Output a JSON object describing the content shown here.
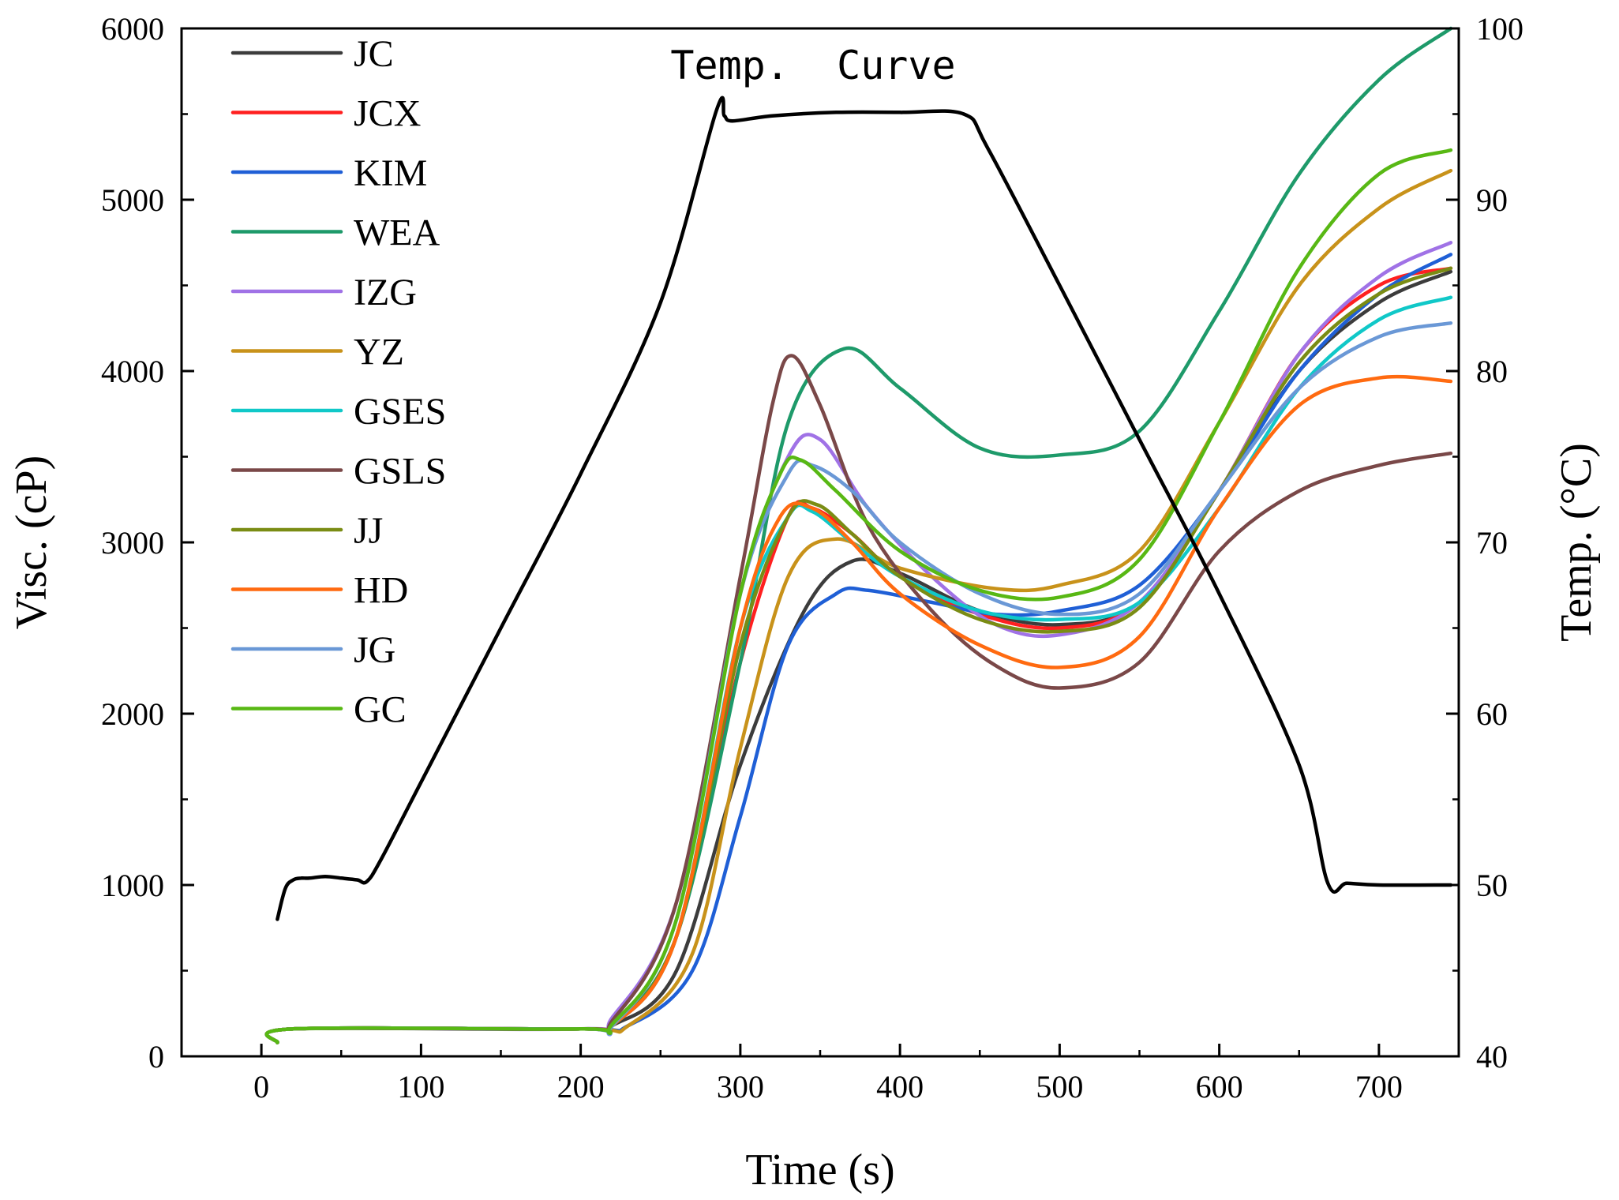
{
  "chart_data": {
    "type": "line",
    "title": "",
    "annotation": "Temp.  Curve",
    "xlabel": "Time (s)",
    "ylabel": "Visc. (cP)",
    "y2label": "Temp. (°C)",
    "xlim": [
      -50,
      750
    ],
    "ylim": [
      0,
      6000
    ],
    "y2lim": [
      40,
      100
    ],
    "x_ticks": [
      "0",
      "100",
      "200",
      "300",
      "400",
      "500",
      "600",
      "700"
    ],
    "y_ticks": [
      "0",
      "1000",
      "2000",
      "3000",
      "4000",
      "5000",
      "6000"
    ],
    "y2_ticks": [
      "40",
      "50",
      "60",
      "70",
      "80",
      "90",
      "100"
    ],
    "legend_position": "top-left",
    "series": [
      {
        "name": "JC",
        "color": "#3c3c3c",
        "x": [
          10,
          20,
          200,
          220,
          260,
          300,
          340,
          370,
          400,
          450,
          500,
          550,
          600,
          650,
          700,
          745
        ],
        "y": [
          80,
          160,
          160,
          180,
          500,
          1700,
          2600,
          2890,
          2820,
          2600,
          2520,
          2650,
          3300,
          4000,
          4400,
          4580
        ]
      },
      {
        "name": "JCX",
        "color": "#ff2020",
        "x": [
          10,
          20,
          200,
          220,
          260,
          300,
          330,
          345,
          370,
          400,
          450,
          500,
          550,
          600,
          650,
          700,
          745
        ],
        "y": [
          80,
          160,
          160,
          180,
          700,
          2300,
          3150,
          3200,
          3050,
          2800,
          2580,
          2500,
          2650,
          3300,
          4100,
          4500,
          4600
        ]
      },
      {
        "name": "KIM",
        "color": "#1f5fd6",
        "x": [
          10,
          20,
          200,
          230,
          270,
          300,
          330,
          360,
          380,
          420,
          460,
          500,
          550,
          600,
          650,
          700,
          745
        ],
        "y": [
          80,
          160,
          160,
          180,
          500,
          1400,
          2400,
          2700,
          2720,
          2650,
          2580,
          2600,
          2750,
          3300,
          4000,
          4450,
          4680
        ]
      },
      {
        "name": "WEA",
        "color": "#1e9a6a",
        "x": [
          10,
          20,
          200,
          220,
          260,
          300,
          330,
          365,
          400,
          450,
          500,
          550,
          600,
          650,
          700,
          745
        ],
        "y": [
          80,
          160,
          160,
          180,
          700,
          2300,
          3700,
          4130,
          3900,
          3550,
          3510,
          3650,
          4350,
          5150,
          5700,
          6000
        ]
      },
      {
        "name": "IZG",
        "color": "#a072e6",
        "x": [
          10,
          20,
          200,
          220,
          260,
          300,
          330,
          350,
          380,
          420,
          460,
          500,
          550,
          600,
          650,
          700,
          745
        ],
        "y": [
          80,
          160,
          160,
          230,
          900,
          2700,
          3500,
          3600,
          3200,
          2800,
          2520,
          2460,
          2650,
          3300,
          4100,
          4550,
          4750
        ]
      },
      {
        "name": "YZ",
        "color": "#c8921a",
        "x": [
          10,
          20,
          200,
          230,
          270,
          300,
          330,
          360,
          400,
          460,
          500,
          550,
          600,
          650,
          700,
          745
        ],
        "y": [
          80,
          160,
          160,
          180,
          600,
          1800,
          2800,
          3020,
          2850,
          2730,
          2750,
          2950,
          3700,
          4500,
          4950,
          5170
        ]
      },
      {
        "name": "GSES",
        "color": "#10c8c8",
        "x": [
          10,
          20,
          200,
          220,
          260,
          300,
          330,
          345,
          370,
          400,
          450,
          500,
          550,
          600,
          650,
          700,
          745
        ],
        "y": [
          80,
          160,
          160,
          180,
          700,
          2500,
          3150,
          3180,
          3000,
          2800,
          2600,
          2550,
          2650,
          3200,
          3900,
          4300,
          4430
        ]
      },
      {
        "name": "GSLS",
        "color": "#7a4848",
        "x": [
          10,
          20,
          200,
          220,
          260,
          300,
          320,
          332,
          350,
          380,
          420,
          460,
          500,
          550,
          600,
          650,
          700,
          745
        ],
        "y": [
          80,
          160,
          160,
          210,
          900,
          2800,
          3800,
          4090,
          3800,
          3100,
          2600,
          2280,
          2150,
          2300,
          2950,
          3300,
          3450,
          3520
        ]
      },
      {
        "name": "JJ",
        "color": "#7a8c14",
        "x": [
          10,
          20,
          200,
          220,
          260,
          300,
          330,
          348,
          370,
          400,
          450,
          500,
          550,
          600,
          650,
          700,
          745
        ],
        "y": [
          80,
          160,
          160,
          180,
          700,
          2400,
          3150,
          3220,
          3050,
          2800,
          2550,
          2480,
          2620,
          3300,
          4050,
          4450,
          4600
        ]
      },
      {
        "name": "HD",
        "color": "#ff6a10",
        "x": [
          10,
          20,
          200,
          220,
          260,
          300,
          325,
          345,
          370,
          400,
          450,
          500,
          550,
          600,
          650,
          700,
          745
        ],
        "y": [
          80,
          160,
          160,
          180,
          700,
          2500,
          3150,
          3200,
          3000,
          2700,
          2400,
          2270,
          2450,
          3200,
          3800,
          3960,
          3940
        ]
      },
      {
        "name": "JG",
        "color": "#6a98d6",
        "x": [
          10,
          20,
          200,
          220,
          260,
          300,
          330,
          345,
          370,
          400,
          450,
          500,
          550,
          600,
          650,
          700,
          745
        ],
        "y": [
          80,
          160,
          160,
          180,
          800,
          2700,
          3400,
          3450,
          3300,
          3000,
          2700,
          2580,
          2700,
          3300,
          3900,
          4200,
          4280
        ]
      },
      {
        "name": "GC",
        "color": "#58b814",
        "x": [
          10,
          20,
          200,
          220,
          260,
          300,
          325,
          338,
          360,
          400,
          450,
          500,
          550,
          600,
          650,
          700,
          745
        ],
        "y": [
          80,
          160,
          160,
          190,
          800,
          2700,
          3400,
          3480,
          3300,
          2950,
          2720,
          2680,
          2900,
          3700,
          4600,
          5150,
          5290
        ]
      }
    ],
    "temperature_series": {
      "name": "Temp. Curve",
      "color": "#000000",
      "axis": "right",
      "x": [
        10,
        15,
        20,
        25,
        30,
        40,
        50,
        60,
        66,
        75,
        100,
        150,
        200,
        250,
        285,
        290,
        295,
        320,
        360,
        400,
        440,
        455,
        500,
        550,
        600,
        650,
        668,
        680,
        700,
        745
      ],
      "y": [
        48,
        49.8,
        50.3,
        50.4,
        50.4,
        50.5,
        50.4,
        50.3,
        50.2,
        51.5,
        56,
        65,
        74,
        84,
        95.2,
        94.9,
        94.6,
        94.9,
        95.1,
        95.1,
        95.0,
        93,
        85,
        76,
        67,
        57,
        50.1,
        50.1,
        50.0,
        50.0
      ]
    }
  }
}
